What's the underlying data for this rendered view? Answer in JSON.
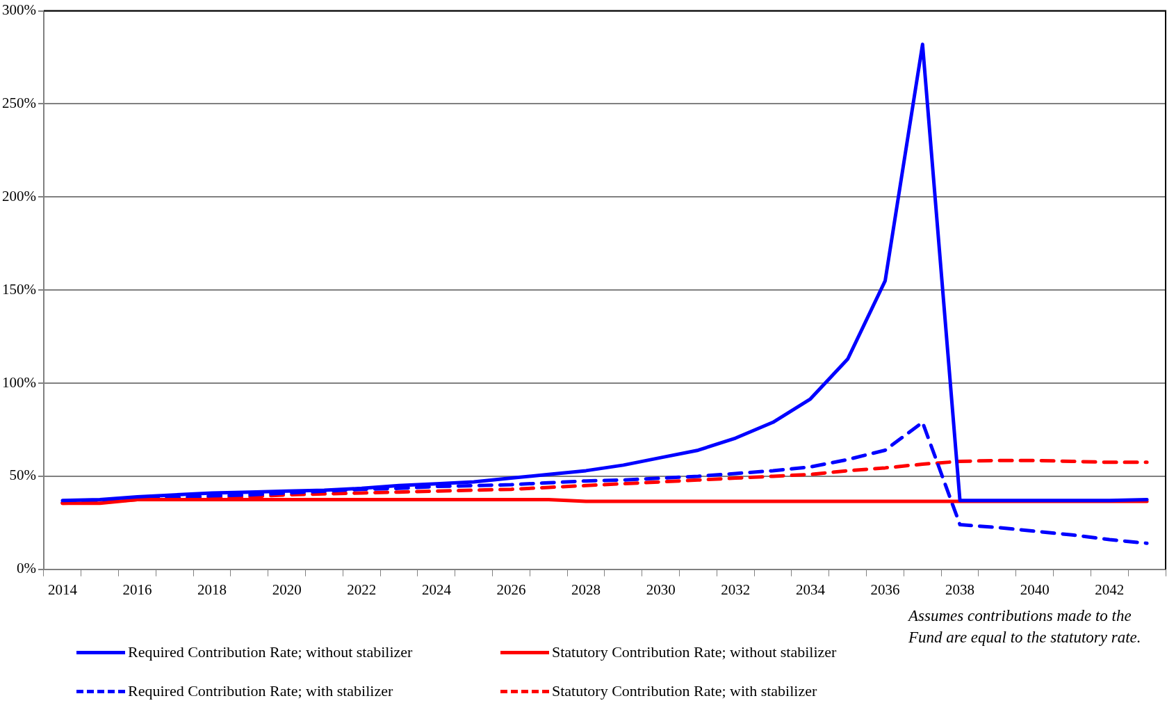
{
  "chart_data": {
    "type": "line",
    "categories": [
      "2014",
      null,
      "2016",
      null,
      "2018",
      null,
      "2020",
      null,
      "2022",
      null,
      "2024",
      null,
      "2026",
      null,
      "2028",
      null,
      "2030",
      null,
      "2032",
      null,
      "2034",
      null,
      "2036",
      null,
      "2038",
      null,
      "2040",
      null,
      "2042",
      null
    ],
    "series": [
      {
        "name": "Required Contribution Rate; without stabilizer",
        "color": "#0000ff",
        "line_style": "solid",
        "values": [
          37,
          37.5,
          39,
          40,
          41,
          41.5,
          42,
          42.5,
          43.5,
          45,
          46,
          47,
          49,
          51,
          53,
          56,
          60,
          64,
          70.5,
          79,
          91.5,
          113,
          155,
          282,
          37,
          37,
          37,
          37,
          37,
          37.5
        ]
      },
      {
        "name": "Statutory Contribution Rate; without stabilizer",
        "color": "#ff0000",
        "line_style": "solid",
        "values": [
          35.5,
          35.5,
          37.5,
          37.5,
          37.5,
          37.5,
          37.5,
          37.5,
          37.5,
          37.5,
          37.5,
          37.5,
          37.5,
          37.5,
          36.5,
          36.5,
          36.5,
          36.5,
          36.5,
          36.5,
          36.5,
          36.5,
          36.5,
          36.5,
          36.5,
          36.5,
          36.5,
          36.5,
          36.5,
          36.5
        ]
      },
      {
        "name": "Required Contribution Rate; with stabilizer",
        "color": "#0000ff",
        "line_style": "dashed",
        "values": [
          36,
          36.5,
          38,
          38.5,
          39.5,
          40,
          41,
          42,
          43,
          43.5,
          44.5,
          45,
          45.5,
          46.5,
          47.5,
          48,
          49,
          50,
          51.5,
          53,
          55,
          59,
          64,
          79,
          24,
          22.5,
          20.5,
          18.5,
          16,
          14
        ]
      },
      {
        "name": "Statutory Contribution Rate; with stabilizer",
        "color": "#ff0000",
        "line_style": "dashed",
        "values": [
          35.5,
          36,
          37.5,
          38,
          38.5,
          39,
          40,
          40.5,
          41,
          41.5,
          42,
          42.5,
          43,
          44,
          45,
          46,
          47,
          48,
          49,
          50,
          51,
          53,
          54.5,
          56.5,
          58,
          58.5,
          58.5,
          58,
          57.5,
          57.5
        ]
      }
    ],
    "ylim": [
      0,
      300
    ],
    "yticks": [
      {
        "value": 0,
        "label": "0%"
      },
      {
        "value": 50,
        "label": "50%"
      },
      {
        "value": 100,
        "label": "100%"
      },
      {
        "value": 150,
        "label": "150%"
      },
      {
        "value": 200,
        "label": "200%"
      },
      {
        "value": 250,
        "label": "250%"
      },
      {
        "value": 300,
        "label": "300%"
      }
    ],
    "grid": "y",
    "legend": "bottom",
    "marker": "none",
    "annotations": [
      "Assumes contributions made to the Fund are equal to the statutory rate."
    ]
  }
}
